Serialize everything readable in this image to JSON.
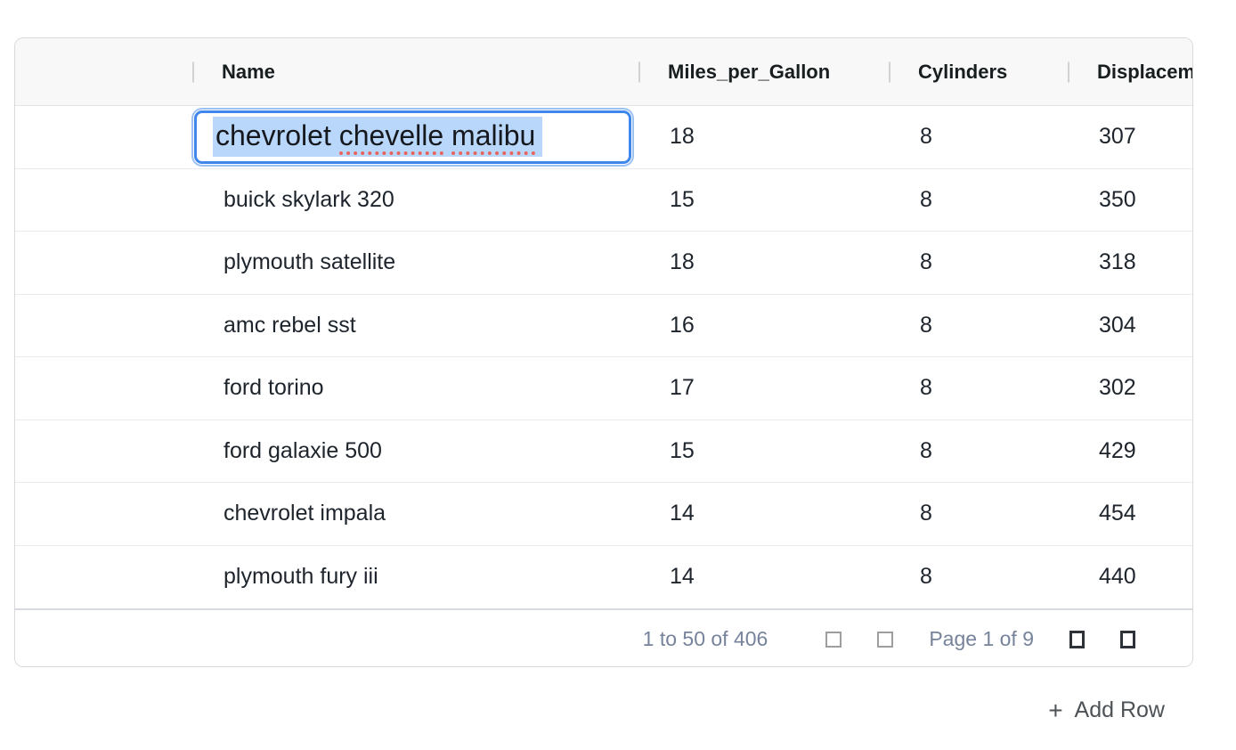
{
  "colors": {
    "edit_border": "#3f87ec",
    "edit_ring": "#9dc2f2",
    "selection": "#b9d6fb",
    "spellcheck_red": "#e8655c",
    "footer_text": "#76839b",
    "disabled_icon": "#9e9e9e",
    "enabled_icon": "#2e333a"
  },
  "table": {
    "columns": [
      {
        "key": "row_index",
        "label": ""
      },
      {
        "key": "Name",
        "label": "Name"
      },
      {
        "key": "Miles_per_Gallon",
        "label": "Miles_per_Gallon"
      },
      {
        "key": "Cylinders",
        "label": "Cylinders"
      },
      {
        "key": "Displacement",
        "label": "Displacement"
      }
    ],
    "rows": [
      {
        "name": "chevrolet chevelle malibu",
        "miles_per_gallon": "18",
        "cylinders": "8",
        "displacement": "307",
        "editing": true
      },
      {
        "name": "buick skylark 320",
        "miles_per_gallon": "15",
        "cylinders": "8",
        "displacement": "350",
        "editing": false
      },
      {
        "name": "plymouth satellite",
        "miles_per_gallon": "18",
        "cylinders": "8",
        "displacement": "318",
        "editing": false
      },
      {
        "name": "amc rebel sst",
        "miles_per_gallon": "16",
        "cylinders": "8",
        "displacement": "304",
        "editing": false
      },
      {
        "name": "ford torino",
        "miles_per_gallon": "17",
        "cylinders": "8",
        "displacement": "302",
        "editing": false
      },
      {
        "name": "ford galaxie 500",
        "miles_per_gallon": "15",
        "cylinders": "8",
        "displacement": "429",
        "editing": false
      },
      {
        "name": "chevrolet impala",
        "miles_per_gallon": "14",
        "cylinders": "8",
        "displacement": "454",
        "editing": false
      },
      {
        "name": "plymouth fury iii",
        "miles_per_gallon": "14",
        "cylinders": "8",
        "displacement": "440",
        "editing": false
      }
    ],
    "editor": {
      "column": "Name",
      "value": "chevrolet chevelle malibu",
      "text_selected": true,
      "segments": [
        {
          "text": "chevrolet ",
          "misspelled": false
        },
        {
          "text": "chevelle",
          "misspelled": true
        },
        {
          "text": " ",
          "misspelled": false
        },
        {
          "text": "malibu",
          "misspelled": true
        }
      ]
    },
    "footer": {
      "range_summary": "1 to 50 of 406",
      "page_status": "Page 1 of 9",
      "buttons": [
        {
          "name": "first-page",
          "enabled": false
        },
        {
          "name": "previous-page",
          "enabled": false
        },
        {
          "name": "next-page",
          "enabled": true
        },
        {
          "name": "last-page",
          "enabled": true
        }
      ]
    }
  },
  "actions": {
    "add_row_icon": "+",
    "add_row_label": "Add Row"
  }
}
